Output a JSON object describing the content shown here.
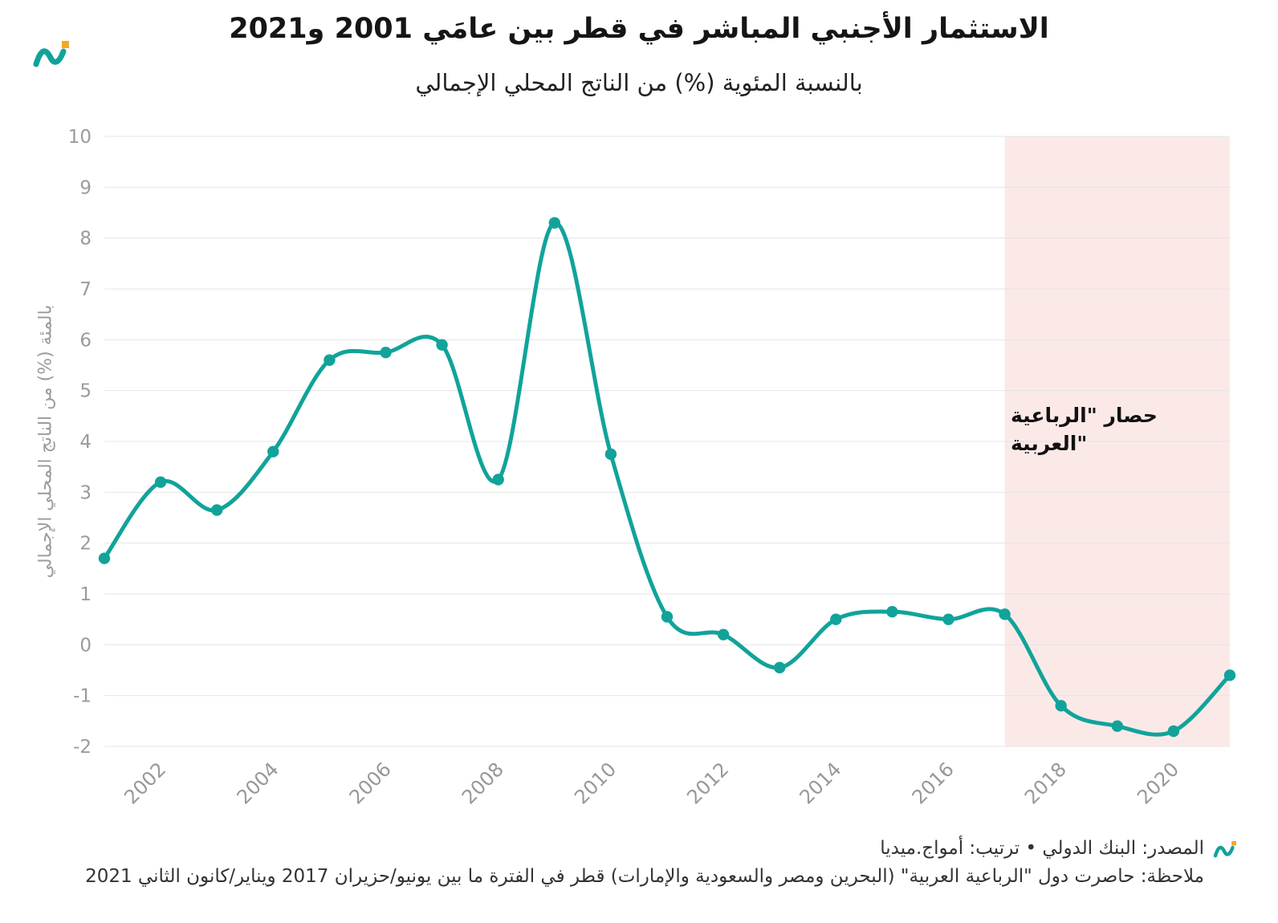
{
  "chart_data": {
    "type": "line",
    "title": "الاستثمار الأجنبي المباشر في قطر بين عامَي 2001 و2021",
    "subtitle": "بالنسبة المئوية (%) من الناتج المحلي الإجمالي",
    "ylabel": "بالمئة (%) من الناتج المحلي الإجمالي",
    "xlabel": "",
    "x": [
      2001,
      2002,
      2003,
      2004,
      2005,
      2006,
      2007,
      2008,
      2009,
      2010,
      2011,
      2012,
      2013,
      2014,
      2015,
      2016,
      2017,
      2018,
      2019,
      2020,
      2021
    ],
    "values": [
      1.7,
      3.2,
      2.65,
      3.8,
      5.6,
      5.75,
      5.9,
      3.25,
      8.3,
      3.75,
      0.55,
      0.2,
      -0.45,
      0.5,
      0.65,
      0.5,
      0.6,
      -1.2,
      -1.6,
      -1.7,
      -0.6
    ],
    "ylim": [
      -2,
      10
    ],
    "ytick_step": 1,
    "xticks": [
      2002,
      2004,
      2006,
      2008,
      2010,
      2012,
      2014,
      2016,
      2018,
      2020
    ],
    "grid": true,
    "legend": "none",
    "line_color": "#11a39a",
    "point_color": "#11a39a",
    "grid_color": "#e4e4e4",
    "tick_color": "#989898",
    "shaded_region": {
      "from": 2017,
      "to": 2021,
      "color": "#fbe9e8",
      "label_line1": "حصار \"الرباعية",
      "label_line2": "\"العربية"
    }
  },
  "footer": {
    "source": "المصدر: البنك الدولي • ترتيب: أمواج.ميديا",
    "note": "ملاحظة: حاصرت دول \"الرباعية العربية\" (البحرين ومصر والسعودية والإمارات) قطر في الفترة ما بين يونيو/حزيران 2017 ويناير/كانون الثاني 2021"
  },
  "brand": {
    "teal": "#11a39a",
    "orange": "#f5a623"
  }
}
